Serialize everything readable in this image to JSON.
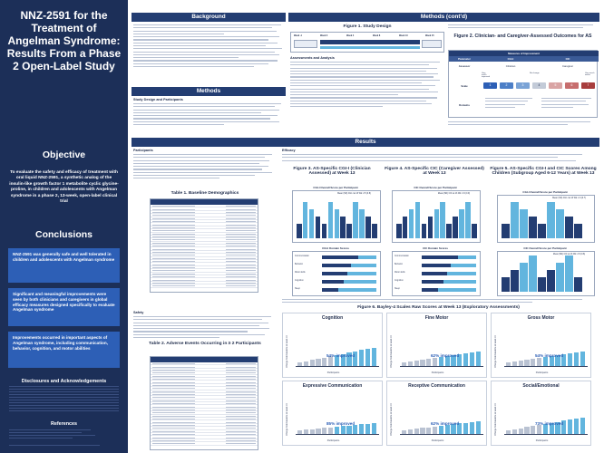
{
  "title": "NNZ-2591 for the Treatment of Angelman Syndrome: Results From a Phase 2 Open-Label Study",
  "sections": {
    "objective": "Objective",
    "conclusions": "Conclusions",
    "background": "Background",
    "methods": "Methods",
    "methods_cont": "Methods (cont'd)",
    "results": "Results",
    "disclosures": "Disclosures and Acknowledgements",
    "references": "References"
  },
  "objective_text": "To evaluate the safety and efficacy of treatment with oral liquid NNZ-2591, a synthetic analog of the insulin-like growth factor 1 metabolite cyclic glycine-proline, in children and adolescents with Angelman syndrome in a phase 2, 13-week, open-label clinical trial",
  "conclusions": [
    "NNZ-2591 was generally safe and well tolerated in children and adolescents with Angelman syndrome",
    "Significant and meaningful improvements were seen by both clinicians and caregivers in global efficacy measures designed specifically to evaluate Angelman syndrome",
    "Improvements occurred in important aspects of Angelman syndrome, including communication, behavior, cognition, and motor abilities"
  ],
  "methods_subheads": {
    "study_design": "Study Design and Participants",
    "assessments": "Assessments and Analysis",
    "participants": "Participants",
    "safety": "Safety",
    "efficacy": "Efficacy"
  },
  "figures": {
    "fig1": "Figure 1. Study Design",
    "fig2": "Figure 2. Clinician- and Caregiver-Assessed Outcomes for AS",
    "fig3": "Figure 3. AS-Specific CGI-I (Clinician Assessed) at Week 13",
    "fig4": "Figure 4. AS-Specific CIC (Caregiver Assessed) at Week 13",
    "fig5": "Figure 5. AS-Specific CGI-I and CIC Scores Among Children (Subgroup Aged 6-12 Years) at Week 13",
    "fig6": "Figure 6. Bayley-4 Scales Raw Scores at Week 13 (Exploratory Assessments)",
    "table1": "Table 1. Baseline Demographics",
    "table2": "Table 2. Adverse Events Occurring in ≥ 2 Participants"
  },
  "fig1_weeks": [
    "Week -1",
    "Week 0",
    "Week 4",
    "Week 8",
    "Week 13",
    "Week 15"
  ],
  "fig2": {
    "header": "Measures of Improvement",
    "col_parameter": "Parameter",
    "col_cgi": "CGI-I",
    "col_cic": "CIC",
    "row_assessor": "Assessor",
    "assessor_cgi": "Clinician",
    "assessor_cic": "Caregiver",
    "row_scale": "Scale",
    "row_domains": "Domains",
    "scale_left": "Very much improved",
    "scale_mid": "No change",
    "scale_right": "Very much worse",
    "scale_ticks": [
      "1",
      "2",
      "3",
      "4",
      "5",
      "6",
      "7"
    ]
  },
  "chart_panels": {
    "fig3_sub": "CGI-I Overall Score per Participant",
    "fig3_sub2": "CGI-I Domain Scores",
    "fig4_sub": "CIC Overall Score per Participant",
    "fig4_sub2": "CIC Domain Scores",
    "fig5_sub": "CGI-I Overall Score per Participant",
    "fig5_sub2": "CIC Overall Score per Participant",
    "stats_fig3": "Mean (SD) CGI-I at 13 Wk: 2.5 (0.8)",
    "stats_fig4": "Mean (SD) CIC at 13 Wk: 2.6 (0.9)",
    "stats_fig5a": "Mean (SD) CGI-I at 13 Wk: 2.4 (0.7)",
    "stats_fig5b": "Mean (SD) CIC at 13 Wk: 2.5 (0.8)"
  },
  "domain_labels": [
    "Communication",
    "Behavior",
    "Motor skills",
    "Cognition",
    "Sleep"
  ],
  "legend_labels": [
    "Much improved",
    "Minimally improved",
    "No change"
  ],
  "chart_data": [
    {
      "type": "bar",
      "title": "Cognition",
      "categories": [
        "Baseline",
        "Week 13"
      ],
      "values": [
        38,
        46
      ],
      "improved_percent": "54% improved",
      "xlabel": "Participants",
      "ylabel": "Change from baseline at week 13"
    },
    {
      "type": "bar",
      "title": "Fine Motor",
      "categories": [
        "Baseline",
        "Week 13"
      ],
      "values": [
        22,
        28
      ],
      "improved_percent": "62% improved",
      "xlabel": "Participants",
      "ylabel": "Change from baseline at week 13"
    },
    {
      "type": "bar",
      "title": "Gross Motor",
      "categories": [
        "Baseline",
        "Week 13"
      ],
      "values": [
        30,
        36
      ],
      "improved_percent": "54% improved",
      "xlabel": "Participants",
      "ylabel": "Change from baseline at week 13"
    },
    {
      "type": "bar",
      "title": "Expressive Communication",
      "categories": [
        "Baseline",
        "Week 13"
      ],
      "values": [
        12,
        16
      ],
      "improved_percent": "85% improved",
      "xlabel": "Participants",
      "ylabel": "Change from baseline at week 13"
    },
    {
      "type": "bar",
      "title": "Receptive Communication",
      "categories": [
        "Baseline",
        "Week 13"
      ],
      "values": [
        16,
        21
      ],
      "improved_percent": "62% improved",
      "xlabel": "Participants",
      "ylabel": "Change from baseline at week 13"
    },
    {
      "type": "bar",
      "title": "Social/Emotional",
      "categories": [
        "Baseline",
        "Week 13"
      ],
      "values": [
        45,
        52
      ],
      "improved_percent": "73% improved",
      "xlabel": "Participants",
      "ylabel": "Change from baseline at week 13"
    }
  ],
  "colors": {
    "navy": "#1c2f58",
    "blue": "#2d5fb6",
    "dark": "#233d72",
    "cyan": "#62b5de",
    "green": "#8fbf72",
    "gray": "#b9c2d2"
  }
}
